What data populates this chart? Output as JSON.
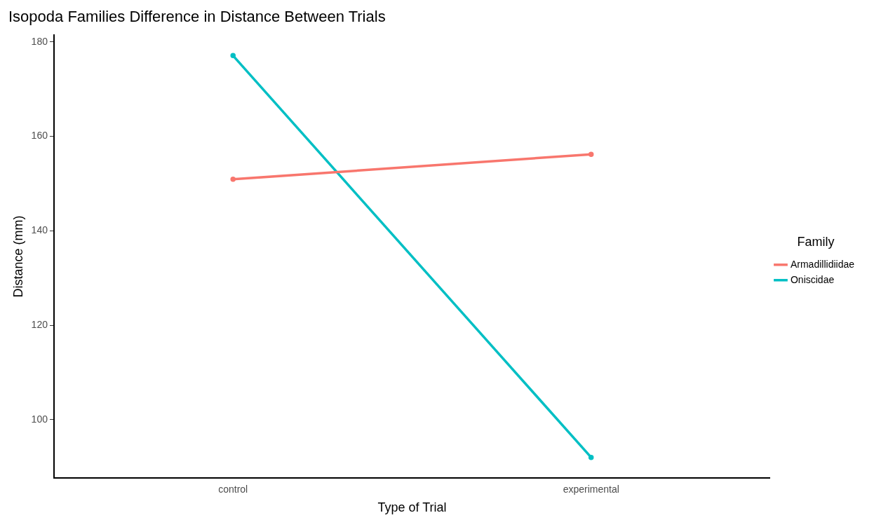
{
  "chart_data": {
    "type": "line",
    "title": "Isopoda Families Difference in Distance Between Trials",
    "xlabel": "Type of Trial",
    "ylabel": "Distance (mm)",
    "legend_title": "Family",
    "categories": [
      "control",
      "experimental"
    ],
    "series": [
      {
        "name": "Armadillidiidae",
        "color": "#f8766d",
        "values": [
          150.9,
          156.2
        ]
      },
      {
        "name": "Oniscidae",
        "color": "#00bfc4",
        "values": [
          177.1,
          92.0
        ]
      }
    ],
    "ylim": [
      87.7,
      181.4
    ],
    "yticks": [
      100,
      120,
      140,
      160,
      180
    ],
    "grid": false,
    "legend": "right",
    "marker": "circle",
    "line_style": "solid"
  }
}
